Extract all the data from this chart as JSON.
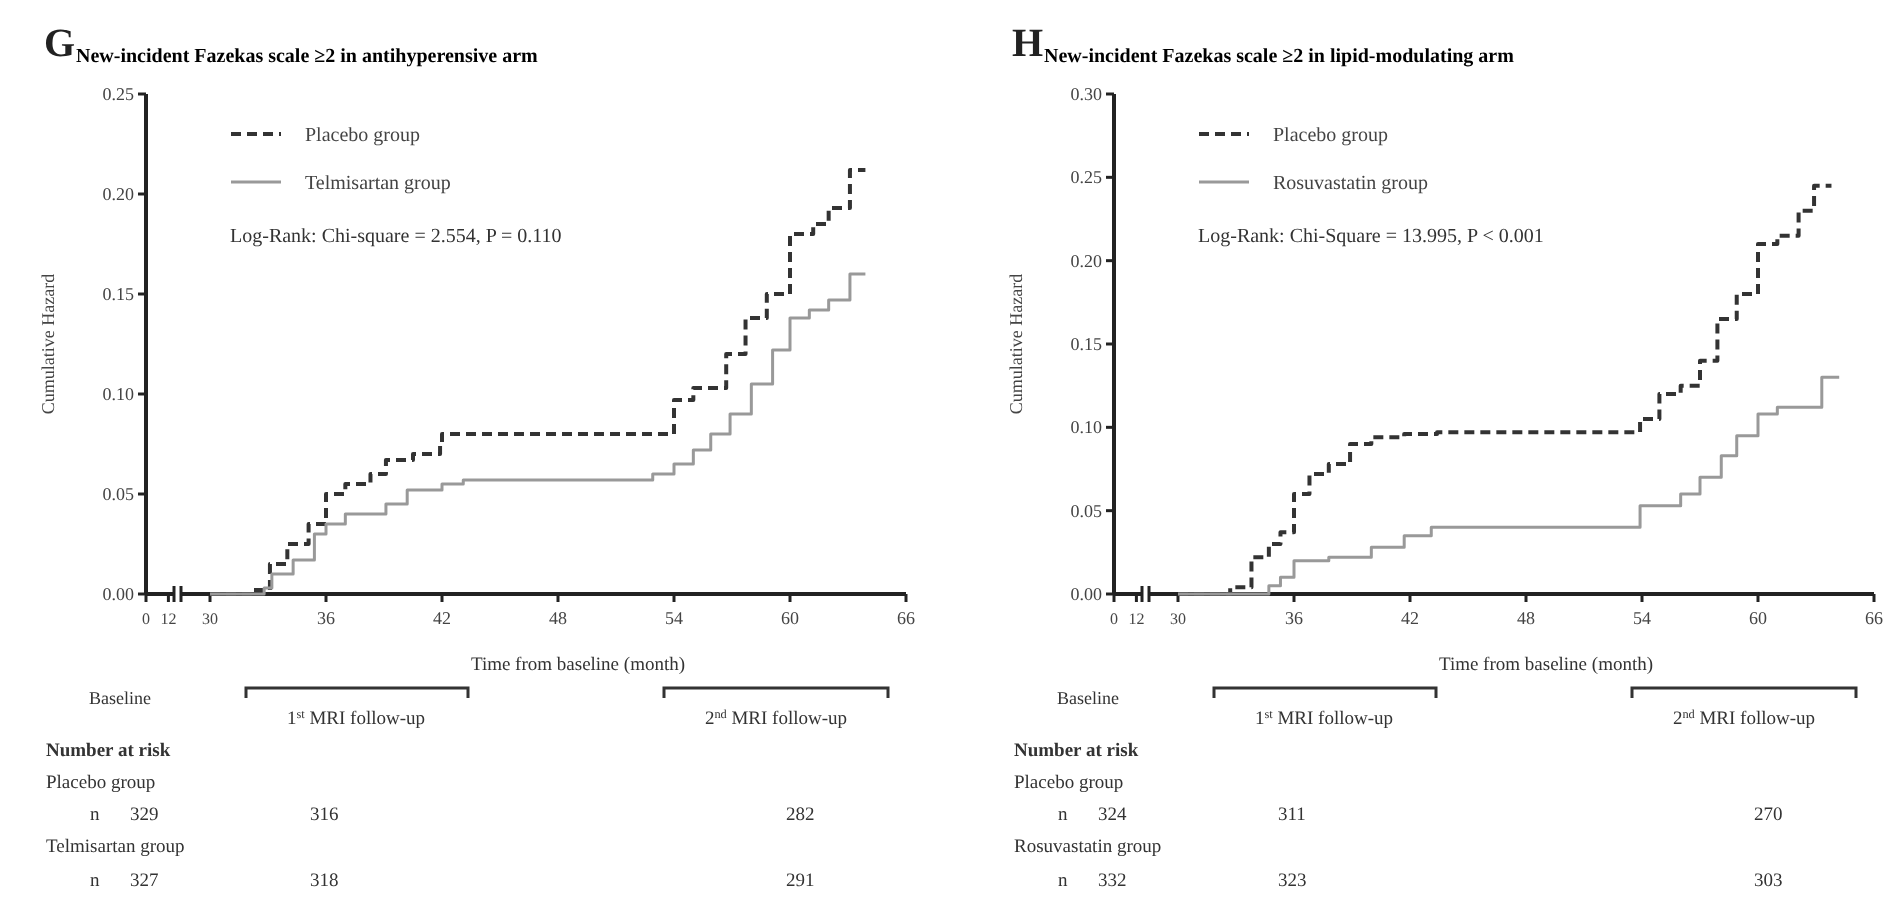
{
  "chart_data": [
    {
      "type": "step",
      "title": "New-incident Fazekas scale  ≥2 in antihyperensive arm",
      "ylabel": "Cumulative Hazard",
      "xlim": [
        0,
        15
      ],
      "xticks": [
        0,
        12
      ],
      "ylim": [
        0,
        0.25
      ],
      "yticks": [
        {
          "value": 0,
          "label": "0.00"
        },
        {
          "value": 0.05,
          "label": "0.05"
        },
        {
          "value": 0.1,
          "label": "0.10"
        },
        {
          "value": 0.15,
          "label": "0.15"
        },
        {
          "value": 0.2,
          "label": "0.20"
        },
        {
          "value": 0.25,
          "label": "0.25"
        }
      ],
      "annotations": [
        "G"
      ]
    },
    {
      "type": "step",
      "xlabel": "Time from baseline (month)",
      "xlim": [
        28.5,
        66
      ],
      "xticks": [
        30,
        36,
        42,
        48,
        54,
        60,
        66
      ],
      "ylim": [
        0,
        0.25
      ],
      "tick_labels": "x",
      "legend": "top left",
      "series": [
        {
          "name": "Placebo group",
          "color": "#333333",
          "line_style": "dashed",
          "x": [
            30,
            32.1,
            33.1,
            34,
            35.1,
            36,
            37,
            38.3,
            39.1,
            40.5,
            41.9,
            42,
            54,
            55,
            56.7,
            57.7,
            58.8,
            60,
            61.2,
            62,
            63.1,
            63.9
          ],
          "values": [
            0,
            0.002,
            0.015,
            0.025,
            0.035,
            0.05,
            0.055,
            0.06,
            0.067,
            0.07,
            0.075,
            0.08,
            0.097,
            0.103,
            0.12,
            0.138,
            0.15,
            0.18,
            0.185,
            0.193,
            0.212,
            0.212
          ]
        },
        {
          "name": "Telmisartan group",
          "color": "#999999",
          "line_style": "solid",
          "x": [
            30,
            32.8,
            33.2,
            34.3,
            35.4,
            36,
            37,
            39.1,
            40.2,
            42,
            43.1,
            52.9,
            54,
            55,
            55.9,
            56.9,
            58,
            59.1,
            60,
            61,
            62,
            63.1,
            63.9
          ],
          "values": [
            0,
            0.003,
            0.01,
            0.017,
            0.03,
            0.035,
            0.04,
            0.045,
            0.052,
            0.055,
            0.057,
            0.06,
            0.065,
            0.072,
            0.08,
            0.09,
            0.105,
            0.122,
            0.138,
            0.142,
            0.147,
            0.16,
            0.16
          ]
        }
      ],
      "annotations": [
        "Log-Rank: Chi-square = 2.554,  P = 0.110",
        "Baseline",
        "1$^{st}$ MRI follow-up",
        "2$^{nd}$ MRI follow-up",
        "Number at risk",
        "Placebo group",
        "n",
        "329",
        "316",
        "282",
        "Telmisartan group",
        "n",
        "327",
        "318",
        "291"
      ]
    },
    {
      "type": "step",
      "title": "New-incident Fazekas scale  ≥2 in lipid-modulating arm",
      "ylabel": "Cumulative Hazard",
      "xlim": [
        0,
        15
      ],
      "xticks": [
        0,
        12
      ],
      "ylim": [
        0,
        0.3
      ],
      "yticks": [
        {
          "value": 0,
          "label": "0.00"
        },
        {
          "value": 0.05,
          "label": "0.05"
        },
        {
          "value": 0.1,
          "label": "0.10"
        },
        {
          "value": 0.15,
          "label": "0.15"
        },
        {
          "value": 0.2,
          "label": "0.20"
        },
        {
          "value": 0.25,
          "label": "0.25"
        },
        {
          "value": 0.3,
          "label": "0.30"
        }
      ],
      "annotations": [
        "H"
      ]
    },
    {
      "type": "step",
      "xlabel": "Time from baseline (month)",
      "xlim": [
        28.5,
        66
      ],
      "xticks": [
        30,
        36,
        42,
        48,
        54,
        60,
        66
      ],
      "ylim": [
        0,
        0.3
      ],
      "tick_labels": "x",
      "legend": "top left",
      "series": [
        {
          "name": "Placebo group",
          "color": "#333333",
          "line_style": "dashed",
          "x": [
            30,
            32.7,
            33.8,
            34.7,
            35.3,
            36,
            36.8,
            37.8,
            38.9,
            40,
            41.7,
            43.4,
            52.8,
            53.9,
            54.9,
            56,
            57,
            57.9,
            58.9,
            60,
            61,
            62.1,
            62.9,
            63.8
          ],
          "values": [
            0,
            0.004,
            0.022,
            0.03,
            0.037,
            0.06,
            0.072,
            0.078,
            0.09,
            0.094,
            0.096,
            0.097,
            0.097,
            0.105,
            0.12,
            0.125,
            0.14,
            0.165,
            0.18,
            0.21,
            0.215,
            0.23,
            0.245,
            0.245
          ]
        },
        {
          "name": "Rosuvastatin group",
          "color": "#999999",
          "line_style": "solid",
          "x": [
            30,
            33,
            34.7,
            35.3,
            36,
            37.8,
            40,
            41.7,
            43.1,
            53.9,
            56,
            57,
            58.1,
            58.9,
            60,
            61,
            63.3,
            64.2
          ],
          "values": [
            0,
            0,
            0.005,
            0.01,
            0.02,
            0.022,
            0.028,
            0.035,
            0.04,
            0.053,
            0.06,
            0.07,
            0.083,
            0.095,
            0.108,
            0.112,
            0.13,
            0.13
          ]
        }
      ],
      "annotations": [
        "Log-Rank: Chi-Square = 13.995,  P < 0.001",
        "Baseline",
        "1$^{st}$ MRI follow-up",
        "2$^{nd}$ MRI follow-up",
        "Number at risk",
        "Placebo group",
        "n",
        "324",
        "311",
        "270",
        "Rosuvastatin group",
        "n",
        "332",
        "323",
        "303"
      ]
    }
  ]
}
